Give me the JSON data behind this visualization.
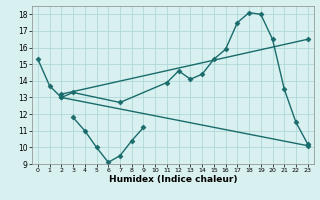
{
  "x_all": [
    0,
    1,
    2,
    3,
    4,
    5,
    6,
    7,
    8,
    9,
    10,
    11,
    12,
    13,
    14,
    15,
    16,
    17,
    18,
    19,
    20,
    21,
    22,
    23
  ],
  "line1": [
    15.3,
    13.7,
    13.0,
    13.3,
    null,
    null,
    null,
    12.7,
    null,
    null,
    null,
    13.9,
    14.6,
    14.1,
    14.4,
    15.3,
    15.9,
    17.5,
    18.1,
    18.0,
    16.5,
    13.5,
    11.5,
    10.2
  ],
  "line2_x": [
    2,
    23
  ],
  "line2_y": [
    13.0,
    10.1
  ],
  "line3_x": [
    2,
    23
  ],
  "line3_y": [
    13.2,
    16.5
  ],
  "line4_x": [
    3,
    4,
    5,
    6,
    7,
    8,
    9
  ],
  "line4_y": [
    11.8,
    11.0,
    10.0,
    9.1,
    9.5,
    10.4,
    11.2
  ],
  "line_color": "#1a6b6b",
  "bg_color": "#d8f0f0",
  "grid_color": "#b0d8d8",
  "xlabel": "Humidex (Indice chaleur)",
  "ylim": [
    9,
    18.5
  ],
  "xlim": [
    -0.5,
    23.5
  ],
  "yticks": [
    9,
    10,
    11,
    12,
    13,
    14,
    15,
    16,
    17,
    18
  ],
  "xticks": [
    0,
    1,
    2,
    3,
    4,
    5,
    6,
    7,
    8,
    9,
    10,
    11,
    12,
    13,
    14,
    15,
    16,
    17,
    18,
    19,
    20,
    21,
    22,
    23
  ],
  "marker": "D",
  "markersize": 2.5,
  "linewidth": 1.0
}
